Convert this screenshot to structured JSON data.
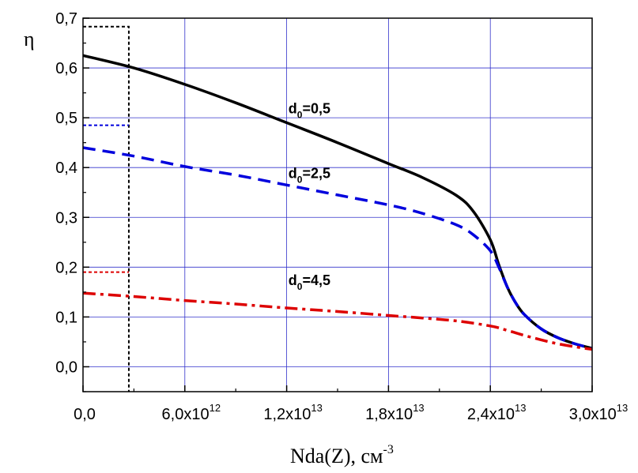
{
  "chart_data": {
    "type": "line",
    "title": "",
    "xlabel": "Nda(Z), см",
    "xlabel_sup": "-3",
    "ylabel": "η",
    "xlim": [
      0,
      30000000000000.0
    ],
    "ylim": [
      -0.05,
      0.7
    ],
    "grid": true,
    "x_ticks": [
      {
        "value": 0,
        "mant": "0,0",
        "exp": ""
      },
      {
        "value": 6000000000000.0,
        "mant": "6,0x10",
        "exp": "12"
      },
      {
        "value": 12000000000000.0,
        "mant": "1,2x10",
        "exp": "13"
      },
      {
        "value": 18000000000000.0,
        "mant": "1,8x10",
        "exp": "13"
      },
      {
        "value": 24000000000000.0,
        "mant": "2,4x10",
        "exp": "13"
      },
      {
        "value": 30000000000000.0,
        "mant": "3,0x10",
        "exp": "13"
      }
    ],
    "y_ticks": [
      {
        "value": 0.0,
        "label": "0,0"
      },
      {
        "value": 0.1,
        "label": "0,1"
      },
      {
        "value": 0.2,
        "label": "0,2"
      },
      {
        "value": 0.3,
        "label": "0,3"
      },
      {
        "value": 0.4,
        "label": "0,4"
      },
      {
        "value": 0.5,
        "label": "0,5"
      },
      {
        "value": 0.6,
        "label": "0,6"
      },
      {
        "value": 0.7,
        "label": "0,7"
      }
    ],
    "series": [
      {
        "label_main": "d",
        "label_sub": "0",
        "label_rest": "=0,5",
        "label_at": [
          13500000000000.0,
          0.52
        ],
        "color": "#000000",
        "dash": "",
        "x": [
          0,
          3000000000000.0,
          6000000000000.0,
          9000000000000.0,
          12000000000000.0,
          15000000000000.0,
          18000000000000.0,
          20000000000000.0,
          22000000000000.0,
          23000000000000.0,
          24000000000000.0,
          24500000000000.0,
          25000000000000.0,
          25500000000000.0,
          26000000000000.0,
          27000000000000.0,
          28000000000000.0,
          29000000000000.0,
          30000000000000.0
        ],
        "y": [
          0.625,
          0.6,
          0.567,
          0.53,
          0.49,
          0.45,
          0.408,
          0.38,
          0.344,
          0.312,
          0.255,
          0.205,
          0.16,
          0.128,
          0.105,
          0.076,
          0.058,
          0.046,
          0.037
        ]
      },
      {
        "label_main": "d",
        "label_sub": "0",
        "label_rest": "=2,5",
        "label_at": [
          13500000000000.0,
          0.39
        ],
        "color": "#0000dd",
        "dash": "16,9",
        "x": [
          0,
          3000000000000.0,
          6000000000000.0,
          9000000000000.0,
          12000000000000.0,
          15000000000000.0,
          18000000000000.0,
          20000000000000.0,
          22000000000000.0,
          23000000000000.0,
          24000000000000.0,
          24500000000000.0,
          25000000000000.0,
          25500000000000.0,
          26000000000000.0,
          27000000000000.0,
          28000000000000.0,
          29000000000000.0,
          30000000000000.0
        ],
        "y": [
          0.44,
          0.423,
          0.402,
          0.385,
          0.365,
          0.345,
          0.325,
          0.308,
          0.285,
          0.265,
          0.233,
          0.2,
          0.16,
          0.128,
          0.105,
          0.076,
          0.058,
          0.046,
          0.037
        ]
      },
      {
        "label_main": "d",
        "label_sub": "0",
        "label_rest": "=4,5",
        "label_at": [
          13500000000000.0,
          0.175
        ],
        "color": "#dd0000",
        "dash": "16,6,4,6",
        "x": [
          0,
          3000000000000.0,
          6000000000000.0,
          9000000000000.0,
          12000000000000.0,
          15000000000000.0,
          18000000000000.0,
          20000000000000.0,
          22000000000000.0,
          24000000000000.0,
          25000000000000.0,
          26000000000000.0,
          27000000000000.0,
          28000000000000.0,
          29000000000000.0,
          30000000000000.0
        ],
        "y": [
          0.148,
          0.141,
          0.133,
          0.126,
          0.118,
          0.111,
          0.103,
          0.098,
          0.092,
          0.082,
          0.073,
          0.063,
          0.054,
          0.046,
          0.04,
          0.035
        ]
      }
    ],
    "markers": [
      {
        "name": "dashed-box-black",
        "color": "#000000",
        "x0": 0,
        "x1": 2700000000000.0,
        "ytop": 0.683,
        "ybottom": -0.05
      },
      {
        "name": "short-line-blue",
        "color": "#0000dd",
        "x0": 0,
        "x1": 2700000000000.0,
        "y": 0.485
      },
      {
        "name": "short-line-red",
        "color": "#dd0000",
        "x0": 0,
        "x1": 2700000000000.0,
        "y": 0.19
      }
    ]
  }
}
